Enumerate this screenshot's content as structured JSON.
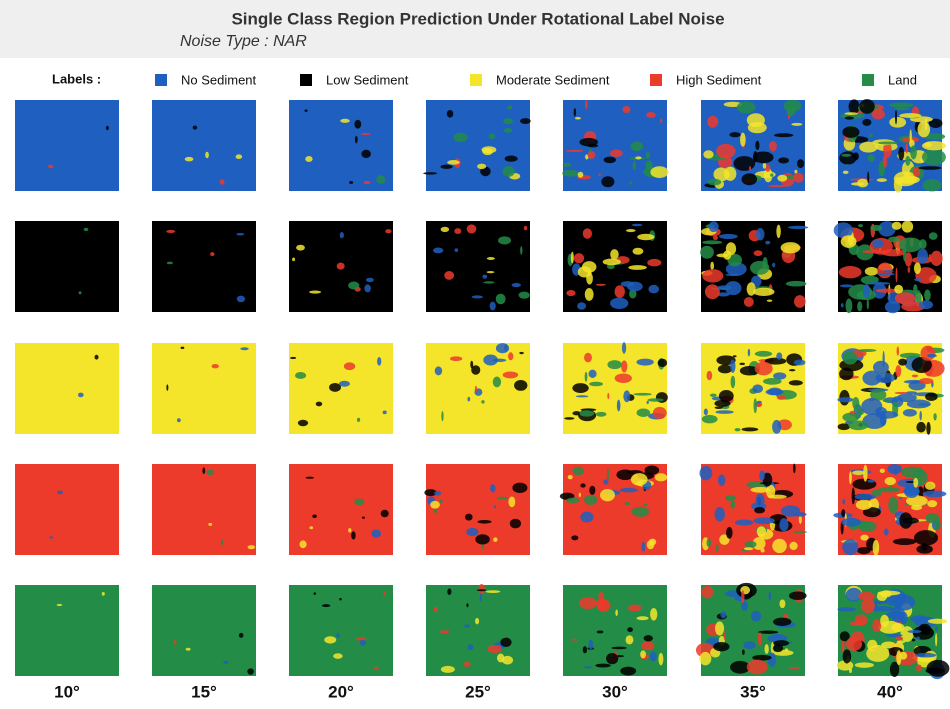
{
  "header": {
    "title": "Single Class Region Prediction Under Rotational Label Noise",
    "subtitle": "Noise Type : NAR"
  },
  "legend": {
    "label": "Labels :",
    "items": [
      {
        "name": "No Sediment",
        "color": "#1f5fbf"
      },
      {
        "name": "Low Sediment",
        "color": "#000000"
      },
      {
        "name": "Moderate Sediment",
        "color": "#f5e52a"
      },
      {
        "name": "High Sediment",
        "color": "#ec3a2b"
      },
      {
        "name": "Land",
        "color": "#238c47"
      }
    ]
  },
  "columns": [
    "10°",
    "15°",
    "20°",
    "25°",
    "30°",
    "35°",
    "40°"
  ]
}
